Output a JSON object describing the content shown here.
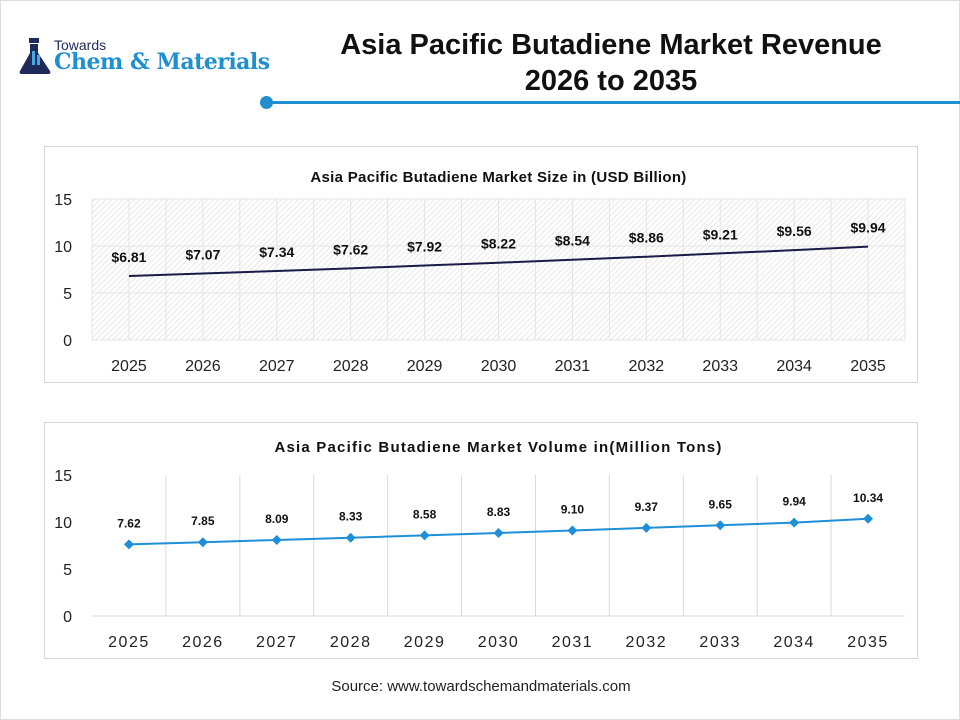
{
  "header": {
    "logo_line1": "Towards",
    "logo_line2": "Chem & Materials",
    "title_line1": "Asia Pacific Butadiene Market Revenue",
    "title_line2": "2026 to 2035",
    "accent": "#1f8fd0"
  },
  "chart_data": [
    {
      "type": "line",
      "title": "Asia Pacific Butadiene Market Size in (USD Billion)",
      "categories": [
        "2025",
        "2026",
        "2027",
        "2028",
        "2029",
        "2030",
        "2031",
        "2032",
        "2033",
        "2034",
        "2035"
      ],
      "values": [
        6.81,
        7.07,
        7.34,
        7.62,
        7.92,
        8.22,
        8.54,
        8.86,
        9.21,
        9.56,
        9.94
      ],
      "labels": [
        "$6.81",
        "$7.07",
        "$7.34",
        "$7.62",
        "$7.92",
        "$8.22",
        "$8.54",
        "$8.86",
        "$9.21",
        "$9.56",
        "$9.94"
      ],
      "ylim": [
        0,
        15
      ],
      "yticks": [
        "0",
        "5",
        "10",
        "15"
      ],
      "grid": true,
      "background": "hatched",
      "color": "#1b1b4a"
    },
    {
      "type": "line",
      "title": "Asia Pacific Butadiene Market Volume in(Million Tons)",
      "categories": [
        "2025",
        "2026",
        "2027",
        "2028",
        "2029",
        "2030",
        "2031",
        "2032",
        "2033",
        "2034",
        "2035"
      ],
      "values": [
        7.62,
        7.85,
        8.09,
        8.33,
        8.58,
        8.83,
        9.1,
        9.37,
        9.65,
        9.94,
        10.34
      ],
      "labels": [
        "7.62",
        "7.85",
        "8.09",
        "8.33",
        "8.58",
        "8.83",
        "9.10",
        "9.37",
        "9.65",
        "9.94",
        "10.34"
      ],
      "ylim": [
        0,
        15
      ],
      "yticks": [
        "0",
        "5",
        "10",
        "15"
      ],
      "grid": "vertical",
      "marker": "diamond",
      "color": "#1f8fd8"
    }
  ],
  "footer": {
    "source": "Source: www.towardschemandmaterials.com"
  }
}
